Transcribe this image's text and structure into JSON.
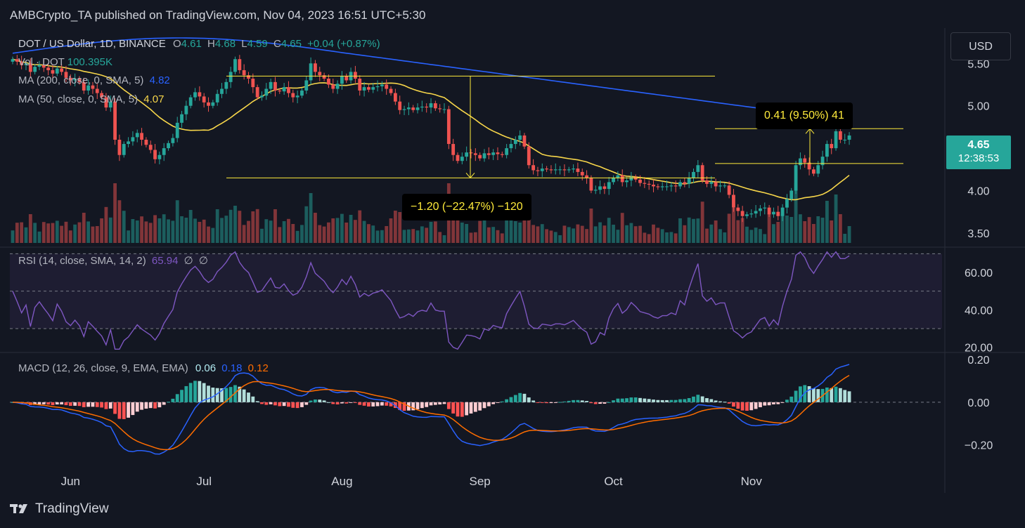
{
  "header": {
    "text": "AMBCrypto_TA published on TradingView.com, Nov 04, 2023 16:51 UTC+5:30"
  },
  "symbol": {
    "name": "DOT / US Dollar, 1D, BINANCE",
    "open_label": "O",
    "open": "4.61",
    "high_label": "H",
    "high": "4.68",
    "low_label": "L",
    "low": "4.59",
    "close_label": "C",
    "close": "4.65",
    "change": "+0.04 (+0.87%)"
  },
  "indicators": {
    "vol": {
      "label": "Vol · DOT",
      "value": "100.395K"
    },
    "ma200": {
      "label": "MA (200, close, 0, SMA, 5)",
      "value": "4.82"
    },
    "ma50": {
      "label": "MA (50, close, 0, SMA, 5)",
      "value": "4.07"
    },
    "rsi": {
      "label": "RSI (14, close, SMA, 14, 2)",
      "value": "65.94",
      "extra1": "∅",
      "extra2": "∅"
    },
    "macd": {
      "label": "MACD (12, 26, close, 9, EMA, EMA)",
      "macd": "0.06",
      "signal": "0.18",
      "hist": "0.12"
    }
  },
  "currency_button": "USD",
  "price_tag": {
    "price": "4.65",
    "countdown": "12:38:53"
  },
  "measures": {
    "up": "0.41 (9.50%) 41",
    "down": "−1.20 (−22.47%) −120"
  },
  "footer": {
    "brand": "TradingView"
  },
  "colors": {
    "background": "#131722",
    "up": "#26a69a",
    "down": "#ef5350",
    "ma200": "#2962ff",
    "ma50": "#f7d64a",
    "rsi": "#7e57c2",
    "macd_line": "#2962ff",
    "signal_line": "#ff6d00",
    "annotation": "#ffeb3b"
  },
  "chart_data": [
    {
      "type": "candlestick",
      "title": "DOT / US Dollar, 1D, BINANCE",
      "x_tick_labels": [
        "Jun",
        "Jul",
        "Aug",
        "Sep",
        "Oct",
        "Nov"
      ],
      "y_tick_labels": [
        "5.50",
        "5.00",
        "4.00",
        "3.50"
      ],
      "ylim": [
        3.35,
        5.85
      ],
      "dates_start": "2023-05-19",
      "close": [
        5.55,
        5.52,
        5.48,
        5.5,
        5.4,
        5.46,
        5.48,
        5.45,
        5.42,
        5.38,
        5.44,
        5.4,
        5.33,
        5.3,
        5.32,
        5.28,
        5.18,
        5.24,
        5.2,
        5.15,
        5.1,
        4.98,
        5.05,
        4.6,
        4.42,
        4.55,
        4.58,
        4.63,
        4.68,
        4.6,
        4.54,
        4.48,
        4.37,
        4.42,
        4.5,
        4.56,
        4.62,
        4.8,
        4.9,
        5.0,
        5.1,
        5.16,
        5.11,
        5.04,
        5.0,
        5.04,
        5.14,
        5.2,
        5.28,
        5.4,
        5.55,
        5.42,
        5.36,
        5.32,
        5.22,
        5.1,
        5.12,
        5.2,
        5.28,
        5.18,
        5.17,
        5.22,
        5.15,
        5.1,
        5.12,
        5.18,
        5.3,
        5.5,
        5.4,
        5.36,
        5.32,
        5.25,
        5.2,
        5.26,
        5.35,
        5.3,
        5.4,
        5.32,
        5.18,
        5.22,
        5.19,
        5.22,
        5.23,
        5.25,
        5.2,
        5.15,
        5.05,
        4.95,
        4.96,
        4.98,
        4.95,
        4.98,
        4.99,
        4.98,
        5.03,
        4.97,
        4.96,
        4.96,
        4.55,
        4.42,
        4.35,
        4.4,
        4.45,
        4.44,
        4.42,
        4.38,
        4.44,
        4.42,
        4.45,
        4.43,
        4.42,
        4.5,
        4.55,
        4.6,
        4.65,
        4.52,
        4.3,
        4.24,
        4.23,
        4.26,
        4.25,
        4.24,
        4.25,
        4.25,
        4.24,
        4.25,
        4.26,
        4.22,
        4.18,
        4.15,
        4.0,
        4.01,
        4.05,
        4.02,
        4.1,
        4.15,
        4.18,
        4.1,
        4.12,
        4.16,
        4.13,
        4.09,
        4.08,
        4.07,
        4.05,
        4.04,
        4.05,
        4.05,
        4.06,
        4.05,
        4.1,
        4.08,
        4.15,
        4.22,
        4.3,
        4.12,
        4.08,
        4.1,
        4.05,
        4.06,
        4.06,
        3.95,
        3.8,
        3.76,
        3.7,
        3.72,
        3.73,
        3.76,
        3.79,
        3.8,
        3.72,
        3.75,
        3.7,
        3.8,
        3.9,
        4.0,
        4.3,
        4.38,
        4.33,
        4.25,
        4.2,
        4.3,
        4.4,
        4.55,
        4.5,
        4.7,
        4.6,
        4.6,
        4.65
      ]
    },
    {
      "type": "line",
      "name": "RSI",
      "y_tick_labels": [
        "60.00",
        "40.00",
        "20.00"
      ],
      "ylim": [
        18,
        72
      ],
      "bands": [
        30,
        70
      ]
    },
    {
      "type": "line",
      "name": "MACD",
      "y_tick_labels": [
        "0.20",
        "0.00",
        "−0.20"
      ],
      "ylim": [
        -0.28,
        0.22
      ]
    }
  ]
}
